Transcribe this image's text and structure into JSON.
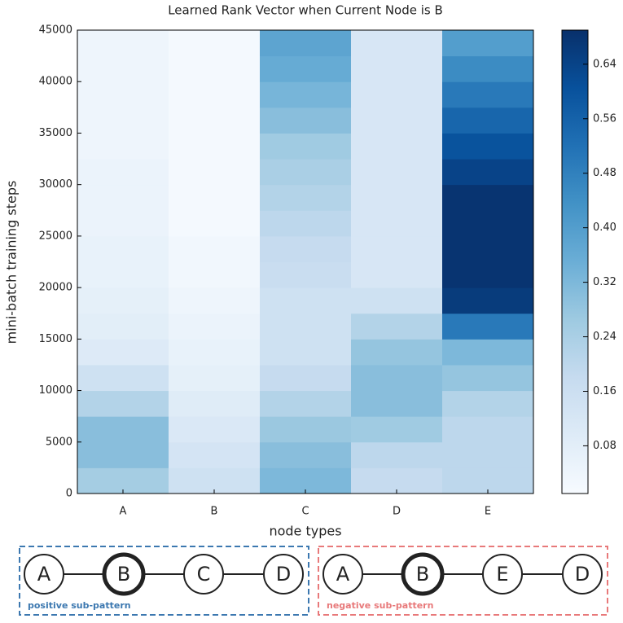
{
  "chart_data": {
    "type": "heatmap",
    "title": "Learned Rank Vector when Current Node is B",
    "xlabel": "node types",
    "ylabel": "mini-batch training steps",
    "categories": [
      "A",
      "B",
      "C",
      "D",
      "E"
    ],
    "y_bins": [
      0,
      2500,
      5000,
      7500,
      10000,
      12500,
      15000,
      17500,
      20000,
      22500,
      25000,
      27500,
      30000,
      32500,
      35000,
      37500,
      40000,
      42500,
      45000
    ],
    "values": [
      [
        0.25,
        0.3,
        0.3,
        0.22,
        0.15,
        0.1,
        0.08,
        0.07,
        0.06,
        0.06,
        0.05,
        0.05,
        0.05,
        0.04,
        0.04,
        0.04,
        0.04,
        0.04
      ],
      [
        0.15,
        0.13,
        0.11,
        0.09,
        0.07,
        0.06,
        0.05,
        0.04,
        0.03,
        0.03,
        0.02,
        0.02,
        0.02,
        0.02,
        0.02,
        0.02,
        0.02,
        0.02
      ],
      [
        0.32,
        0.3,
        0.27,
        0.22,
        0.18,
        0.15,
        0.15,
        0.15,
        0.17,
        0.18,
        0.2,
        0.22,
        0.24,
        0.26,
        0.3,
        0.33,
        0.36,
        0.38
      ],
      [
        0.18,
        0.2,
        0.26,
        0.3,
        0.3,
        0.28,
        0.22,
        0.15,
        0.12,
        0.12,
        0.12,
        0.12,
        0.12,
        0.12,
        0.12,
        0.12,
        0.12,
        0.12
      ],
      [
        0.2,
        0.2,
        0.2,
        0.22,
        0.28,
        0.32,
        0.5,
        0.66,
        0.68,
        0.68,
        0.68,
        0.68,
        0.64,
        0.6,
        0.55,
        0.5,
        0.45,
        0.4
      ]
    ],
    "ylim": [
      0,
      45000
    ],
    "yticks": [
      0,
      5000,
      10000,
      15000,
      20000,
      25000,
      30000,
      35000,
      40000,
      45000
    ],
    "clim": [
      0.01,
      0.69
    ],
    "cticks": [
      0.08,
      0.16,
      0.24,
      0.32,
      {
        "value": 0.4,
        "label": "0.40"
      },
      0.48,
      0.56,
      0.64
    ],
    "colormap": "Blues"
  },
  "diagram": {
    "highlight": 1,
    "groups": [
      {
        "label": "positive sub-pattern",
        "nodes": [
          "A",
          "B",
          "C",
          "D"
        ],
        "color": "#3c78b0"
      },
      {
        "label": "negative sub-pattern",
        "nodes": [
          "A",
          "B",
          "E",
          "D"
        ],
        "color": "#e8797a"
      }
    ]
  }
}
